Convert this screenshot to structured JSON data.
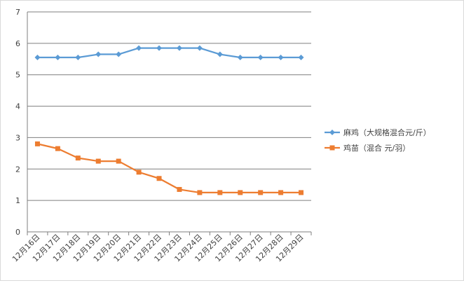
{
  "chart_data": {
    "type": "line",
    "title": "",
    "xlabel": "",
    "ylabel": "",
    "ylim": [
      0,
      7
    ],
    "y_ticks": [
      "0",
      "1",
      "2",
      "3",
      "4",
      "5",
      "6",
      "7"
    ],
    "grid": true,
    "legend_position": "right",
    "categories": [
      "12月16日",
      "12月17日",
      "12月18日",
      "12月19日",
      "12月20日",
      "12月21日",
      "12月22日",
      "12月23日",
      "12月24日",
      "12月25日",
      "12月26日",
      "12月27日",
      "12月28日",
      "12月29日"
    ],
    "series": [
      {
        "name": "麻鸡（大规格混合元/斤）",
        "color": "#5b9bd5",
        "marker": "diamond",
        "values": [
          5.55,
          5.55,
          5.55,
          5.65,
          5.65,
          5.85,
          5.85,
          5.85,
          5.85,
          5.65,
          5.55,
          5.55,
          5.55,
          5.55
        ]
      },
      {
        "name": "鸡苗（混合 元/羽）",
        "color": "#ed7d31",
        "marker": "square",
        "values": [
          2.8,
          2.65,
          2.35,
          2.25,
          2.25,
          1.9,
          1.7,
          1.35,
          1.25,
          1.25,
          1.25,
          1.25,
          1.25,
          1.25
        ]
      }
    ]
  }
}
